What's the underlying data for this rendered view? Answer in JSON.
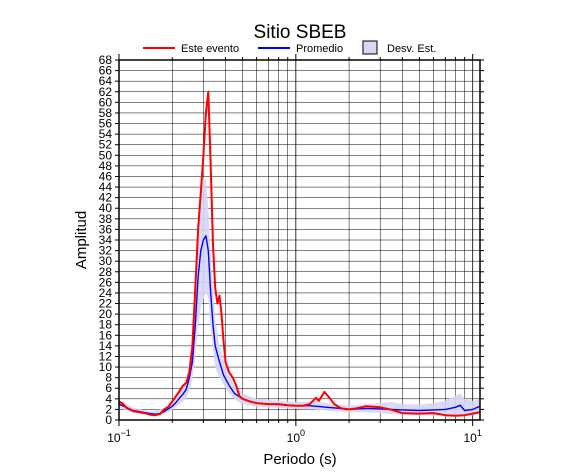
{
  "chart_data": {
    "type": "line",
    "title": "Sitio SBEB",
    "xlabel": "Periodo (s)",
    "ylabel": "Amplitud",
    "x_scale": "log",
    "xlim": [
      0.1,
      11
    ],
    "ylim": [
      0,
      68
    ],
    "grid": true,
    "legend_position": "top",
    "x_tick_labels": [
      {
        "value": 0.1,
        "base": "10",
        "exp": "−1"
      },
      {
        "value": 1,
        "base": "10",
        "exp": "0"
      },
      {
        "value": 10,
        "base": "10",
        "exp": "1"
      }
    ],
    "y_ticks": [
      0,
      2,
      4,
      6,
      8,
      10,
      12,
      14,
      16,
      18,
      20,
      22,
      24,
      26,
      28,
      30,
      32,
      34,
      36,
      38,
      40,
      42,
      44,
      46,
      48,
      50,
      52,
      54,
      56,
      58,
      60,
      62,
      64,
      66,
      68
    ],
    "series": [
      {
        "name": "Este evento",
        "color": "#ff0000",
        "points": [
          [
            0.1,
            3.5
          ],
          [
            0.105,
            3.1
          ],
          [
            0.11,
            2.3
          ],
          [
            0.12,
            1.7
          ],
          [
            0.13,
            1.5
          ],
          [
            0.14,
            1.3
          ],
          [
            0.15,
            1.0
          ],
          [
            0.16,
            0.9
          ],
          [
            0.17,
            1.1
          ],
          [
            0.18,
            2.0
          ],
          [
            0.19,
            2.5
          ],
          [
            0.2,
            3.5
          ],
          [
            0.21,
            4.5
          ],
          [
            0.22,
            5.5
          ],
          [
            0.23,
            6.5
          ],
          [
            0.24,
            7.0
          ],
          [
            0.25,
            9.0
          ],
          [
            0.26,
            14.0
          ],
          [
            0.27,
            25.0
          ],
          [
            0.28,
            36.0
          ],
          [
            0.29,
            43.0
          ],
          [
            0.3,
            50.0
          ],
          [
            0.31,
            58.0
          ],
          [
            0.32,
            62.0
          ],
          [
            0.33,
            48.0
          ],
          [
            0.34,
            33.0
          ],
          [
            0.35,
            25.0
          ],
          [
            0.36,
            22.0
          ],
          [
            0.37,
            23.5
          ],
          [
            0.38,
            20.0
          ],
          [
            0.39,
            15.0
          ],
          [
            0.4,
            11.0
          ],
          [
            0.42,
            9.0
          ],
          [
            0.44,
            8.0
          ],
          [
            0.46,
            6.5
          ],
          [
            0.48,
            4.5
          ],
          [
            0.5,
            4.0
          ],
          [
            0.55,
            3.5
          ],
          [
            0.6,
            3.2
          ],
          [
            0.7,
            3.0
          ],
          [
            0.8,
            3.0
          ],
          [
            0.9,
            2.8
          ],
          [
            1.0,
            2.7
          ],
          [
            1.1,
            2.7
          ],
          [
            1.2,
            3.0
          ],
          [
            1.3,
            4.2
          ],
          [
            1.35,
            3.6
          ],
          [
            1.45,
            5.3
          ],
          [
            1.55,
            4.2
          ],
          [
            1.65,
            3.0
          ],
          [
            1.8,
            2.2
          ],
          [
            2.0,
            2.0
          ],
          [
            2.2,
            2.2
          ],
          [
            2.5,
            2.6
          ],
          [
            3.0,
            2.4
          ],
          [
            3.5,
            1.9
          ],
          [
            4.0,
            1.3
          ],
          [
            5.0,
            1.2
          ],
          [
            6.0,
            1.3
          ],
          [
            7.0,
            0.9
          ],
          [
            8.0,
            0.8
          ],
          [
            9.0,
            0.9
          ],
          [
            10.0,
            1.2
          ],
          [
            11.0,
            1.5
          ]
        ]
      },
      {
        "name": "Promedio",
        "color": "#0000ff",
        "points": [
          [
            0.1,
            3.0
          ],
          [
            0.11,
            2.4
          ],
          [
            0.12,
            1.8
          ],
          [
            0.13,
            1.6
          ],
          [
            0.14,
            1.4
          ],
          [
            0.15,
            1.2
          ],
          [
            0.16,
            1.1
          ],
          [
            0.17,
            1.2
          ],
          [
            0.18,
            1.6
          ],
          [
            0.19,
            2.1
          ],
          [
            0.2,
            2.6
          ],
          [
            0.21,
            3.3
          ],
          [
            0.22,
            4.2
          ],
          [
            0.23,
            4.9
          ],
          [
            0.24,
            5.8
          ],
          [
            0.25,
            8.0
          ],
          [
            0.26,
            11.0
          ],
          [
            0.27,
            18.0
          ],
          [
            0.28,
            27.0
          ],
          [
            0.29,
            32.0
          ],
          [
            0.3,
            34.0
          ],
          [
            0.31,
            34.8
          ],
          [
            0.32,
            32.0
          ],
          [
            0.33,
            24.0
          ],
          [
            0.34,
            18.0
          ],
          [
            0.35,
            14.0
          ],
          [
            0.37,
            11.0
          ],
          [
            0.39,
            8.5
          ],
          [
            0.42,
            6.5
          ],
          [
            0.45,
            5.0
          ],
          [
            0.5,
            4.0
          ],
          [
            0.55,
            3.5
          ],
          [
            0.6,
            3.2
          ],
          [
            0.7,
            3.0
          ],
          [
            0.8,
            2.9
          ],
          [
            0.9,
            2.8
          ],
          [
            1.0,
            2.7
          ],
          [
            1.2,
            2.7
          ],
          [
            1.5,
            2.4
          ],
          [
            1.8,
            2.2
          ],
          [
            2.0,
            2.0
          ],
          [
            2.5,
            2.2
          ],
          [
            3.0,
            2.1
          ],
          [
            3.5,
            2.0
          ],
          [
            4.0,
            1.9
          ],
          [
            5.0,
            1.8
          ],
          [
            6.0,
            1.9
          ],
          [
            7.0,
            2.0
          ],
          [
            8.0,
            2.4
          ],
          [
            8.5,
            2.8
          ],
          [
            9.0,
            1.8
          ],
          [
            10.0,
            2.0
          ],
          [
            11.0,
            2.6
          ]
        ]
      }
    ],
    "std_band": {
      "name": "Desv. Est.",
      "fill": "#d6d6f5",
      "stroke": "#000000",
      "upper": [
        [
          0.1,
          3.8
        ],
        [
          0.12,
          2.4
        ],
        [
          0.15,
          1.6
        ],
        [
          0.18,
          2.2
        ],
        [
          0.2,
          3.4
        ],
        [
          0.22,
          5.4
        ],
        [
          0.24,
          7.8
        ],
        [
          0.26,
          15.0
        ],
        [
          0.27,
          24.0
        ],
        [
          0.28,
          37.0
        ],
        [
          0.29,
          44.0
        ],
        [
          0.3,
          46.0
        ],
        [
          0.31,
          45.0
        ],
        [
          0.32,
          40.0
        ],
        [
          0.33,
          31.0
        ],
        [
          0.35,
          19.0
        ],
        [
          0.37,
          14.0
        ],
        [
          0.4,
          10.5
        ],
        [
          0.45,
          6.5
        ],
        [
          0.5,
          5.0
        ],
        [
          0.6,
          4.0
        ],
        [
          0.8,
          3.6
        ],
        [
          1.0,
          3.4
        ],
        [
          1.3,
          3.5
        ],
        [
          1.5,
          3.2
        ],
        [
          2.0,
          2.7
        ],
        [
          2.5,
          3.0
        ],
        [
          3.0,
          3.2
        ],
        [
          3.5,
          3.4
        ],
        [
          4.0,
          3.0
        ],
        [
          5.0,
          2.9
        ],
        [
          6.0,
          3.2
        ],
        [
          7.0,
          3.6
        ],
        [
          8.0,
          4.6
        ],
        [
          8.5,
          5.0
        ],
        [
          9.0,
          4.0
        ],
        [
          10.0,
          3.6
        ],
        [
          11.0,
          4.0
        ]
      ],
      "lower": [
        [
          0.1,
          2.4
        ],
        [
          0.12,
          1.3
        ],
        [
          0.15,
          0.9
        ],
        [
          0.18,
          1.1
        ],
        [
          0.2,
          1.9
        ],
        [
          0.22,
          3.1
        ],
        [
          0.24,
          4.0
        ],
        [
          0.26,
          7.5
        ],
        [
          0.27,
          12.0
        ],
        [
          0.28,
          18.0
        ],
        [
          0.29,
          21.0
        ],
        [
          0.3,
          23.0
        ],
        [
          0.31,
          24.0
        ],
        [
          0.32,
          23.0
        ],
        [
          0.33,
          17.0
        ],
        [
          0.35,
          10.0
        ],
        [
          0.37,
          8.0
        ],
        [
          0.4,
          6.0
        ],
        [
          0.45,
          3.8
        ],
        [
          0.5,
          3.0
        ],
        [
          0.6,
          2.5
        ],
        [
          0.8,
          2.3
        ],
        [
          1.0,
          2.1
        ],
        [
          1.3,
          2.0
        ],
        [
          1.5,
          1.8
        ],
        [
          2.0,
          1.4
        ],
        [
          2.5,
          1.5
        ],
        [
          3.0,
          1.3
        ],
        [
          3.5,
          1.1
        ],
        [
          4.0,
          1.0
        ],
        [
          5.0,
          0.9
        ],
        [
          6.0,
          0.9
        ],
        [
          7.0,
          0.8
        ],
        [
          8.0,
          0.9
        ],
        [
          9.0,
          0.8
        ],
        [
          10.0,
          0.9
        ],
        [
          11.0,
          1.2
        ]
      ]
    }
  }
}
